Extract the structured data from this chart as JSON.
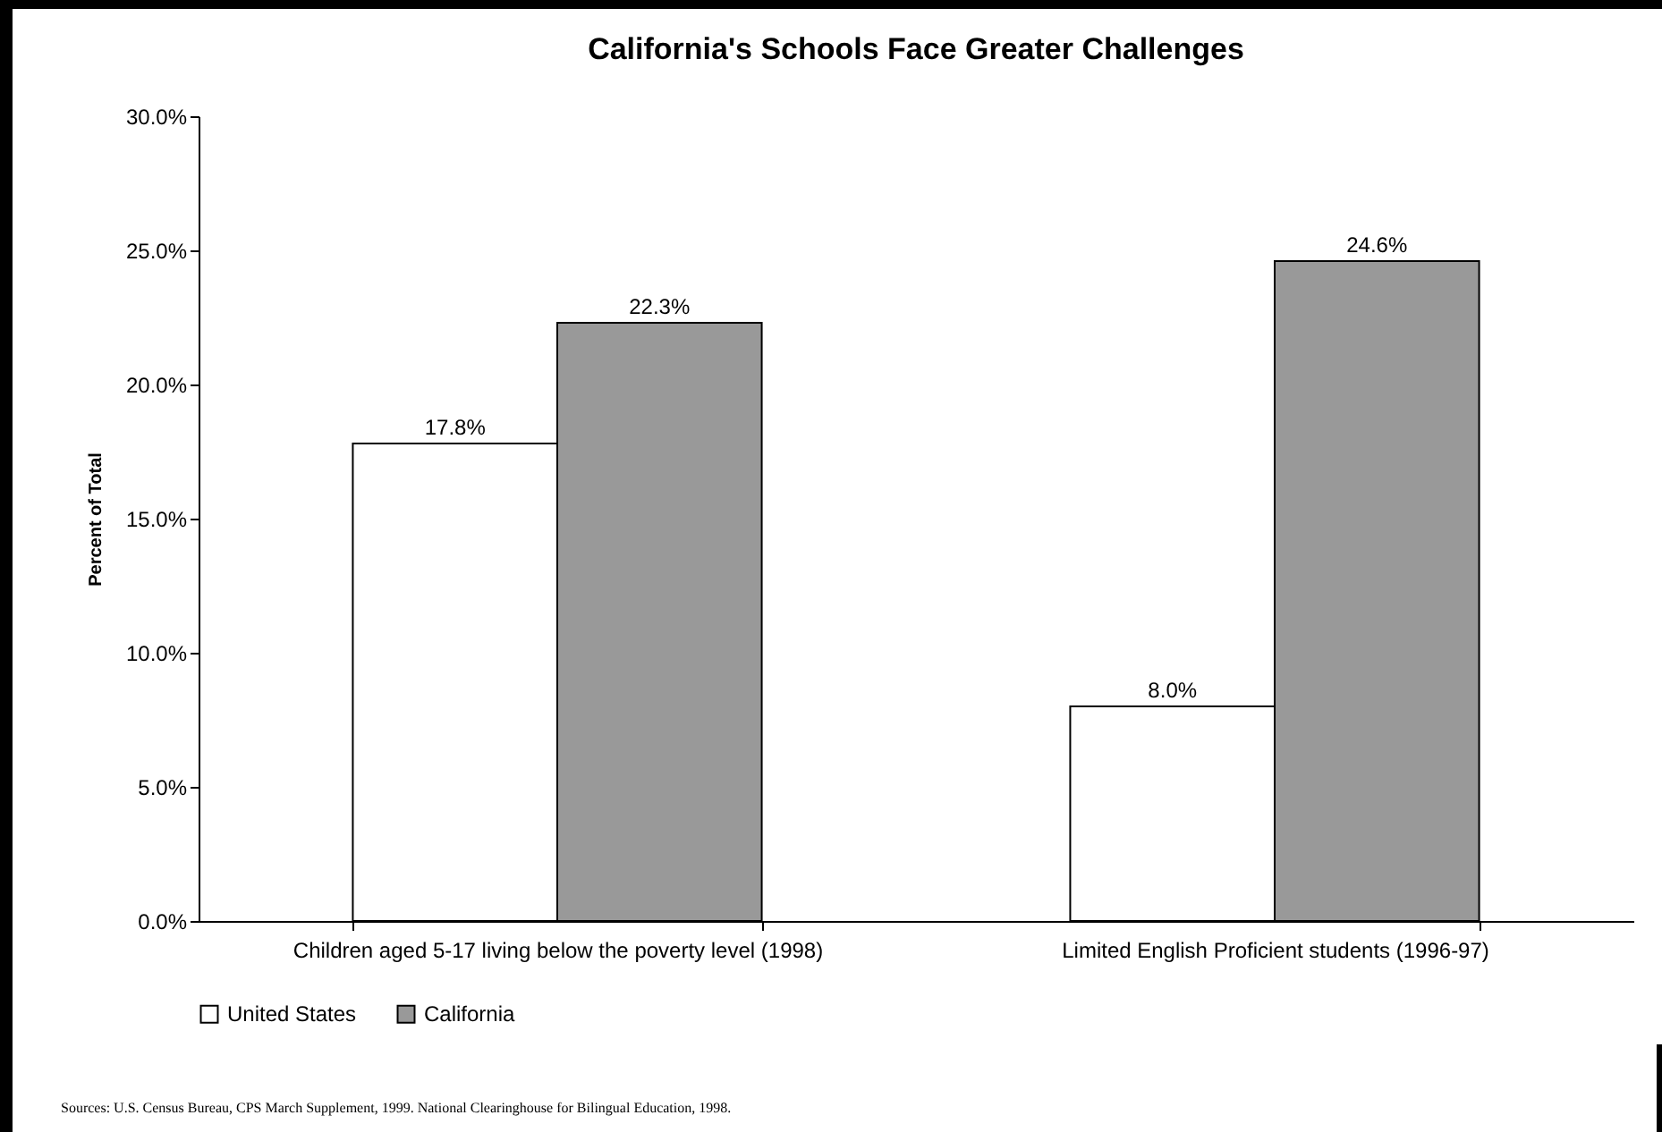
{
  "chart_data": {
    "type": "bar",
    "title": "California's Schools Face Greater Challenges",
    "ylabel": "Percent of Total",
    "categories": [
      "Children aged 5-17 living below the poverty level (1998)",
      "Limited English Proficient students (1996-97)"
    ],
    "series": [
      {
        "name": "United States",
        "color": "#ffffff",
        "values": [
          17.8,
          8.0
        ],
        "value_labels": [
          "17.8%",
          "8.0%"
        ]
      },
      {
        "name": "California",
        "color": "#999999",
        "values": [
          22.3,
          24.6
        ],
        "value_labels": [
          "22.3%",
          "24.6%"
        ]
      }
    ],
    "ylim": [
      0,
      30
    ],
    "yticks": [
      {
        "value": 0,
        "label": "0.0%"
      },
      {
        "value": 5,
        "label": "5.0%"
      },
      {
        "value": 10,
        "label": "10.0%"
      },
      {
        "value": 15,
        "label": "15.0%"
      },
      {
        "value": 20,
        "label": "20.0%"
      },
      {
        "value": 25,
        "label": "25.0%"
      },
      {
        "value": 30,
        "label": "30.0%"
      }
    ],
    "legend": "bottom",
    "annotations": [
      "Sources: U.S. Census Bureau, CPS March Supplement, 1999.  National Clearinghouse for Bilingual Education, 1998."
    ]
  }
}
